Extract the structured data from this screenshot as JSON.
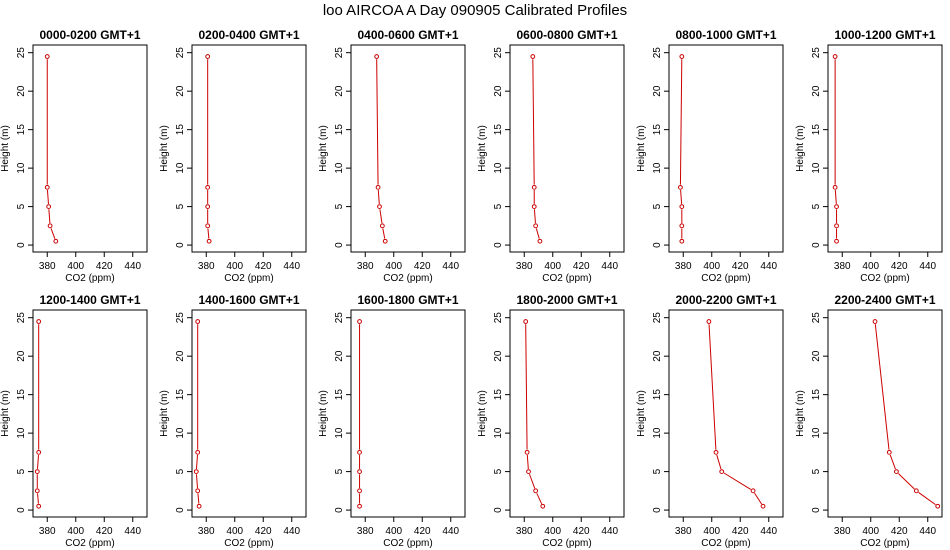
{
  "title": "loo AIRCOA A  Day 090905  Calibrated Profiles",
  "chart_data": {
    "type": "line",
    "xlabel": "CO2 (ppm)",
    "ylabel": "Height (m)",
    "xlim": [
      370,
      450
    ],
    "ylim": [
      0,
      25
    ],
    "x_ticks": [
      "380",
      "400",
      "420",
      "440"
    ],
    "y_ticks": [
      "0",
      "5",
      "10",
      "15",
      "20",
      "25"
    ],
    "line_color": "#cc0000",
    "heights": [
      24.5,
      7.5,
      5.0,
      2.5,
      0.5
    ],
    "panels": [
      {
        "title": "0000-0200 GMT+1",
        "co2": [
          380,
          380,
          381,
          382,
          386
        ]
      },
      {
        "title": "0200-0400 GMT+1",
        "co2": [
          381,
          381,
          381,
          381,
          382
        ]
      },
      {
        "title": "0400-0600 GMT+1",
        "co2": [
          388,
          389,
          390,
          392,
          394
        ]
      },
      {
        "title": "0600-0800 GMT+1",
        "co2": [
          386,
          387,
          387,
          388,
          391
        ]
      },
      {
        "title": "0800-1000 GMT+1",
        "co2": [
          379,
          378,
          379,
          379,
          379
        ]
      },
      {
        "title": "1000-1200 GMT+1",
        "co2": [
          375,
          375,
          376,
          376,
          376
        ]
      },
      {
        "title": "1200-1400 GMT+1",
        "co2": [
          374,
          374,
          373,
          373,
          374
        ]
      },
      {
        "title": "1400-1600 GMT+1",
        "co2": [
          374,
          374,
          373,
          374,
          375
        ]
      },
      {
        "title": "1600-1800 GMT+1",
        "co2": [
          376,
          376,
          376,
          376,
          376
        ]
      },
      {
        "title": "1800-2000 GMT+1",
        "co2": [
          381,
          382,
          383,
          388,
          393
        ]
      },
      {
        "title": "2000-2200 GMT+1",
        "co2": [
          398,
          403,
          407,
          429,
          436
        ]
      },
      {
        "title": "2200-2400 GMT+1",
        "co2": [
          403,
          413,
          418,
          432,
          447
        ]
      }
    ]
  }
}
